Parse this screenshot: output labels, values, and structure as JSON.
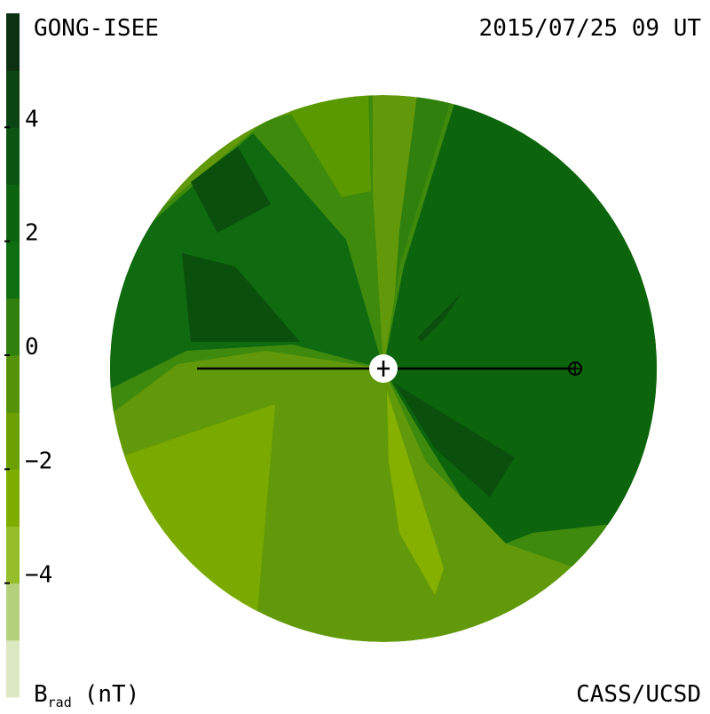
{
  "chart_data": {
    "type": "contour",
    "source": "GONG-ISEE",
    "date": "2015/07/25 09 UT",
    "credit": "CASS/UCSD",
    "colorbar": {
      "symbol": "B",
      "subscript": "rad",
      "unit": "(nT)",
      "lim": [
        -6,
        6
      ],
      "ticks": [
        {
          "value": -4,
          "label": "−4"
        },
        {
          "value": -2,
          "label": "−2"
        },
        0,
        2,
        4
      ],
      "colors": [
        "#dbe8c2",
        "#b3d07a",
        "#95be2a",
        "#7fac00",
        "#6c9f00",
        "#55920a",
        "#2f800c",
        "#0f6e10",
        "#0d6410",
        "#0b5512",
        "#0b4514",
        "#0b3012"
      ]
    }
  }
}
